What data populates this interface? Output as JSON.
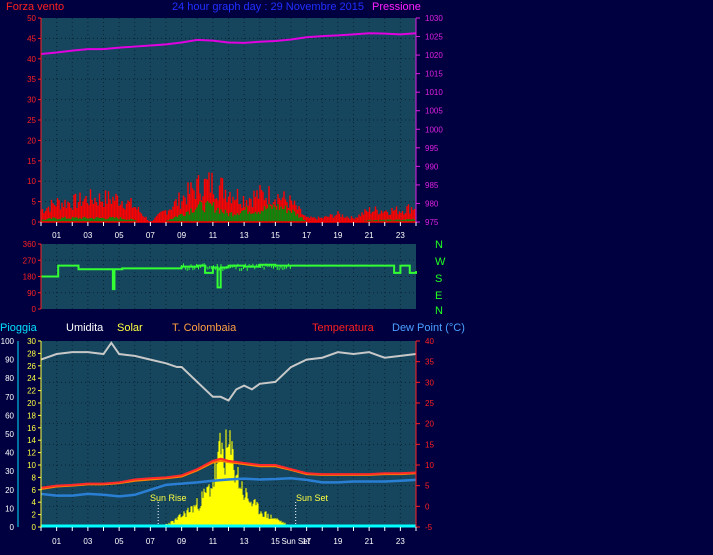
{
  "colors": {
    "background": "#000040",
    "plot_bg": "#15465e",
    "gust_red": "#ff0000",
    "wind_green": "#0a8a0a",
    "pressure": "#e000e0",
    "direction": "#33ff33",
    "humidity": "#c8c8c8",
    "solar": "#ffff00",
    "temperature": "#ff2a2a",
    "colombaia": "#ff8000",
    "dewpoint": "#2a7fd4",
    "rain": "#00ffff",
    "grid": "#000000"
  },
  "header": {
    "left_label": "Forza vento",
    "title": "24 hour graph day : 29 Novembre 2015",
    "right_label": "Pressione"
  },
  "dir_labels": [
    "N",
    "W",
    "S",
    "E",
    "N"
  ],
  "lower_header": {
    "pioggia": "Pioggia",
    "umidita": "Umidita",
    "solar": "Solar",
    "colombaia": "T. Colombaia",
    "temperatura": "Temperatura",
    "dewpoint": "Dew Point (°C)"
  },
  "annotations": {
    "sunrise": "Sun Rise",
    "sunset": "Sun Set",
    "sunset_tick": "Sun Set"
  },
  "chart_data": [
    {
      "type": "line",
      "panel": "wind-pressure",
      "title": "24 hour graph day : 29 Novembre 2015",
      "left_axis": {
        "label": "Forza vento",
        "ylim": [
          0,
          50
        ],
        "ticks": [
          "0",
          "5",
          "10",
          "15",
          "20",
          "25",
          "30",
          "35",
          "40",
          "45",
          "50"
        ]
      },
      "right_axis": {
        "label": "Pressione",
        "ylim": [
          975,
          1030
        ],
        "ticks": [
          "975",
          "980",
          "985",
          "990",
          "995",
          "1000",
          "1005",
          "1010",
          "1015",
          "1020",
          "1025",
          "1030"
        ]
      },
      "x_ticks": [
        "01",
        "03",
        "05",
        "07",
        "09",
        "11",
        "13",
        "15",
        "17",
        "19",
        "21",
        "23"
      ],
      "x_hours": [
        1,
        3,
        5,
        7,
        9,
        11,
        13,
        15,
        17,
        19,
        21,
        23
      ],
      "pressure": {
        "x": [
          0,
          1,
          2,
          3,
          4,
          5,
          6,
          7,
          8,
          9,
          10,
          11,
          12,
          13,
          14,
          15,
          16,
          17,
          18,
          19,
          20,
          21,
          22,
          23,
          24
        ],
        "y": [
          1020.3,
          1020.7,
          1021.2,
          1021.6,
          1021.6,
          1022.0,
          1022.3,
          1022.6,
          1022.9,
          1023.4,
          1024.1,
          1023.9,
          1023.4,
          1023.3,
          1023.6,
          1023.8,
          1024.2,
          1024.8,
          1025.1,
          1025.3,
          1025.6,
          1025.9,
          1025.8,
          1025.6,
          1025.9
        ]
      },
      "gust_level": {
        "x": [
          0,
          1,
          2,
          3,
          4,
          5,
          6,
          7,
          8,
          9,
          10,
          11,
          12,
          13,
          14,
          15,
          16,
          17,
          18,
          19,
          20,
          21,
          22,
          23,
          24
        ],
        "y": [
          3,
          5,
          5,
          6,
          6,
          6,
          4,
          0,
          3,
          6,
          9,
          10,
          8,
          6,
          7,
          7,
          5,
          1,
          1,
          2,
          1,
          3,
          3,
          3,
          4
        ]
      },
      "avg_level": {
        "x": [
          0,
          1,
          2,
          3,
          4,
          5,
          6,
          7,
          8,
          9,
          10,
          11,
          12,
          13,
          14,
          15,
          16,
          17,
          18,
          19,
          20,
          21,
          22,
          23,
          24
        ],
        "y": [
          0.5,
          1,
          1,
          1,
          1,
          1,
          0.5,
          0,
          0.3,
          2,
          4,
          4,
          2,
          3,
          3,
          4,
          3,
          0.2,
          0,
          0.2,
          0.2,
          0.5,
          0.5,
          0.5,
          0.8
        ]
      }
    },
    {
      "type": "line",
      "panel": "wind-direction",
      "y_axis": {
        "ylim": [
          0,
          360
        ],
        "ticks": [
          "0",
          "90",
          "180",
          "270",
          "360"
        ]
      },
      "series": [
        {
          "x": [
            0,
            1,
            1.1,
            2.3,
            2.4,
            4,
            4.5,
            4.6,
            4.7,
            5.1,
            5.2,
            8,
            9,
            10,
            10.5,
            11,
            11.3,
            11.5,
            12,
            12.5,
            13,
            14,
            15,
            16,
            17,
            18,
            19,
            20,
            21,
            22,
            22.5,
            22.6,
            23,
            23.5,
            23.6,
            24
          ],
          "y": [
            180,
            180,
            240,
            240,
            220,
            220,
            220,
            110,
            220,
            220,
            225,
            225,
            235,
            240,
            200,
            230,
            120,
            230,
            240,
            240,
            235,
            245,
            240,
            240,
            240,
            240,
            240,
            240,
            240,
            240,
            240,
            200,
            240,
            240,
            200,
            210
          ]
        }
      ]
    },
    {
      "type": "line",
      "panel": "temp-humidity-solar",
      "left_axis_umidita": {
        "label": "Umidita",
        "ticks": [
          "0",
          "10",
          "20",
          "30",
          "40",
          "50",
          "60",
          "70",
          "80",
          "90",
          "100"
        ]
      },
      "left_axis_solar": {
        "label": "Solar",
        "ticks": [
          "0",
          "2",
          "4",
          "6",
          "8",
          "10",
          "12",
          "14",
          "16",
          "18",
          "20",
          "22",
          "24",
          "26",
          "28",
          "30"
        ]
      },
      "right_axis": {
        "label": "Temperatura",
        "ylim": [
          -5,
          40
        ],
        "ticks": [
          "-5",
          "0",
          "5",
          "10",
          "15",
          "20",
          "25",
          "30",
          "35",
          "40"
        ]
      },
      "series": [
        {
          "name": "Umidita",
          "x": [
            0,
            1,
            2,
            3,
            4,
            4.5,
            5,
            6,
            7,
            8,
            8.7,
            9,
            10,
            11,
            11.5,
            12,
            12.5,
            13,
            13.5,
            14,
            15,
            16,
            17,
            18,
            19,
            20,
            21,
            22,
            23,
            24
          ],
          "y": [
            90,
            93,
            94,
            94,
            93,
            99,
            93,
            92,
            90,
            88,
            86,
            86,
            78,
            70,
            70,
            68,
            74,
            76,
            74,
            77,
            78,
            86,
            90,
            91,
            94,
            93,
            94,
            91,
            92,
            93
          ]
        },
        {
          "name": "Temperatura",
          "x": [
            0,
            1,
            2,
            3,
            4,
            5,
            6,
            7,
            8,
            9,
            10,
            11,
            11.5,
            12,
            13,
            14,
            15,
            16,
            17,
            18,
            19,
            20,
            21,
            22,
            23,
            24
          ],
          "y": [
            4.5,
            5,
            5.2,
            5.5,
            5.5,
            5.8,
            6.5,
            6.8,
            7,
            7.5,
            9,
            11,
            11.5,
            11,
            10.5,
            10,
            10,
            9,
            8,
            7.8,
            7.8,
            7.8,
            7.8,
            8,
            8,
            8.2
          ]
        },
        {
          "name": "T. Colombaia",
          "x": [
            0,
            1,
            2,
            3,
            4,
            5,
            6,
            7,
            8,
            9,
            10,
            11,
            11.5,
            12,
            13,
            14,
            15,
            16,
            17,
            18,
            19,
            20,
            21,
            22,
            23,
            24
          ],
          "y": [
            4.2,
            4.8,
            5,
            5.3,
            5.3,
            5.6,
            6.2,
            6.5,
            6.8,
            7.2,
            8.7,
            10.6,
            11,
            10.7,
            10.2,
            9.7,
            9.7,
            8.8,
            7.8,
            7.6,
            7.6,
            7.6,
            7.6,
            7.8,
            7.8,
            8
          ]
        },
        {
          "name": "Dew Point (°C)",
          "x": [
            0,
            1,
            2,
            3,
            4,
            5,
            6,
            7,
            8,
            9,
            10,
            11,
            12,
            13,
            14,
            15,
            16,
            17,
            18,
            19,
            20,
            21,
            22,
            23,
            24
          ],
          "y": [
            3,
            2.6,
            2.6,
            3,
            2.8,
            2.4,
            2.8,
            4,
            5.2,
            5.5,
            5.8,
            6.2,
            6.5,
            6.7,
            6.5,
            6.6,
            6.8,
            6.4,
            5.8,
            5.8,
            6,
            6,
            6,
            6.2,
            6.4
          ]
        },
        {
          "name": "Solar",
          "x": [
            7.5,
            8,
            8.5,
            9,
            9.5,
            10,
            10.3,
            10.6,
            11,
            11.3,
            11.5,
            11.8,
            12,
            12.3,
            12.6,
            13,
            13.3,
            13.6,
            14,
            14.5,
            15,
            15.5,
            16
          ],
          "y": [
            0,
            0.5,
            1,
            2,
            3,
            4,
            5,
            6,
            8,
            11,
            14,
            13,
            14,
            12,
            9,
            6,
            5,
            4,
            3,
            2,
            1.5,
            0.8,
            0
          ]
        }
      ],
      "pioggia": {
        "label": "Pioggia",
        "value": 0
      }
    }
  ]
}
